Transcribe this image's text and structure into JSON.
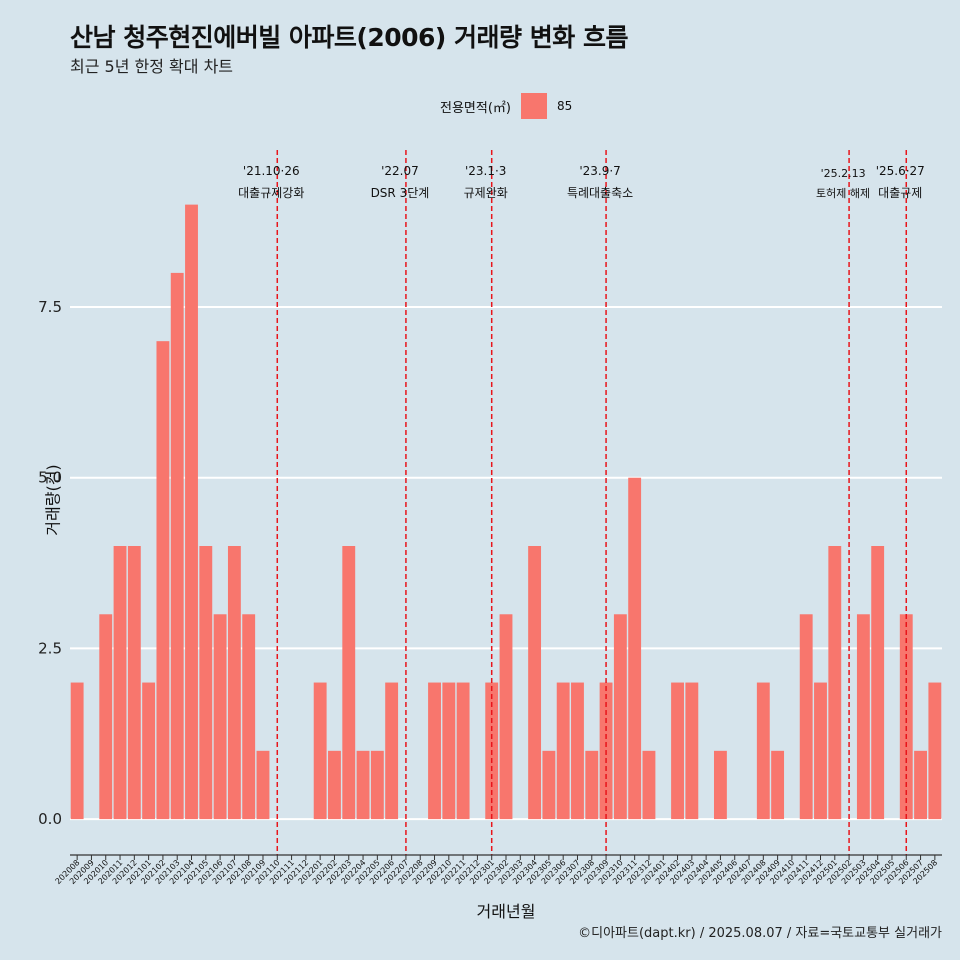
{
  "header": {
    "title": "산남 청주현진에버빌 아파트(2006) 거래량 변화 흐름",
    "subtitle": "최근 5년 한정 확대 차트"
  },
  "legend": {
    "title": "전용면적(㎡)",
    "items": [
      {
        "label": "85",
        "color": "#f8766d"
      }
    ]
  },
  "caption": "©디아파트(dapt.kr) / 2025.08.07 / 자료=국토교통부 실거래가",
  "chart_data": {
    "type": "bar",
    "xlabel": "거래년월",
    "ylabel": "거래량(건)",
    "ylim": [
      -0.35,
      9.8
    ],
    "yticks": [
      "0.0",
      "2.5",
      "5.0",
      "7.5"
    ],
    "ytick_values": [
      0,
      2.5,
      5,
      7.5
    ],
    "bar_color": "#f8766d",
    "categories": [
      "202008",
      "202009",
      "202010",
      "202011",
      "202012",
      "202101",
      "202102",
      "202103",
      "202104",
      "202105",
      "202106",
      "202107",
      "202108",
      "202109",
      "202110",
      "202111",
      "202112",
      "202201",
      "202202",
      "202203",
      "202204",
      "202205",
      "202206",
      "202207",
      "202208",
      "202209",
      "202210",
      "202211",
      "202212",
      "202301",
      "202302",
      "202303",
      "202304",
      "202305",
      "202306",
      "202307",
      "202308",
      "202309",
      "202310",
      "202311",
      "202312",
      "202401",
      "202402",
      "202403",
      "202404",
      "202405",
      "202406",
      "202407",
      "202408",
      "202409",
      "202410",
      "202411",
      "202412",
      "202501",
      "202502",
      "202503",
      "202504",
      "202505",
      "202506",
      "202507",
      "202508"
    ],
    "values": [
      2,
      0,
      3,
      4,
      4,
      2,
      7,
      8,
      9,
      4,
      3,
      4,
      3,
      1,
      0,
      0,
      0,
      2,
      1,
      4,
      1,
      1,
      2,
      0,
      0,
      2,
      2,
      2,
      0,
      2,
      3,
      0,
      4,
      1,
      2,
      2,
      1,
      2,
      3,
      5,
      1,
      0,
      2,
      2,
      0,
      1,
      0,
      0,
      2,
      1,
      0,
      3,
      2,
      4,
      0,
      3,
      4,
      0,
      3,
      1,
      2
    ],
    "events": [
      {
        "at": "202110",
        "date": "'21.10·26",
        "label": "대출규제강화"
      },
      {
        "at": "202207",
        "date": "'22.07",
        "label": "DSR 3단계"
      },
      {
        "at": "202301",
        "date": "'23.1·3",
        "label": "규제완화"
      },
      {
        "at": "202309",
        "date": "'23.9·7",
        "label": "특례대출축소"
      },
      {
        "at": "202502",
        "date": "'25.2.13",
        "label": "토허제 해제"
      },
      {
        "at": "202506",
        "date": "'25.6·27",
        "label": "대출규제"
      }
    ]
  }
}
